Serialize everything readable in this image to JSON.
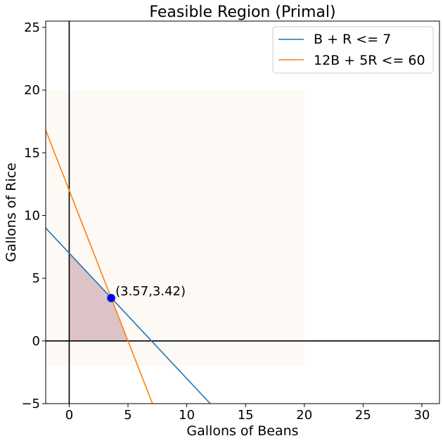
{
  "chart_data": {
    "type": "line",
    "title": "Feasible Region (Primal)",
    "xlabel": "Gallons of Beans",
    "ylabel": "Gallons of Rice",
    "xlim": [
      -2,
      31.5
    ],
    "ylim": [
      -5,
      25.5
    ],
    "xticks": [
      0,
      5,
      10,
      15,
      20,
      25,
      30
    ],
    "yticks": [
      -5,
      0,
      5,
      10,
      15,
      20,
      25
    ],
    "xtick_labels": [
      "0",
      "5",
      "10",
      "15",
      "20",
      "25",
      "30"
    ],
    "ytick_labels": [
      "−5",
      "0",
      "5",
      "10",
      "15",
      "20",
      "25"
    ],
    "grid": false,
    "legend_position": "top-right",
    "series": [
      {
        "name": "B + R <= 7",
        "color": "#1f77b4",
        "x": [
          -2,
          12
        ],
        "y": [
          9,
          -5
        ]
      },
      {
        "name": "12B + 5R <= 60",
        "color": "#ff7f0e",
        "x": [
          -2,
          7.083
        ],
        "y": [
          16.8,
          -5
        ]
      }
    ],
    "background_region": {
      "x": [
        -2,
        20
      ],
      "y": [
        -2,
        20
      ],
      "color": "#fdf9f5"
    },
    "feasible_region": {
      "vertices": [
        [
          0,
          0
        ],
        [
          0,
          7
        ],
        [
          3.57,
          3.42
        ],
        [
          5,
          0
        ]
      ],
      "color": "#dcc3c8"
    },
    "point": {
      "x": 3.57,
      "y": 3.42,
      "label": "(3.57,3.42)",
      "color": "#0000ff"
    },
    "reference_lines": [
      {
        "axis": "x",
        "value": 0
      },
      {
        "axis": "y",
        "value": 0
      }
    ]
  }
}
